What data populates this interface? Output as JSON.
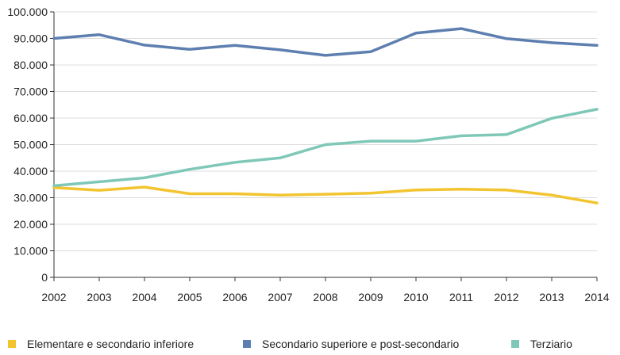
{
  "chart_data": {
    "type": "line",
    "title": "",
    "xlabel": "",
    "ylabel": "",
    "x": [
      "2002",
      "2003",
      "2004",
      "2005",
      "2006",
      "2007",
      "2008",
      "2009",
      "2010",
      "2011",
      "2012",
      "2013",
      "2014"
    ],
    "ylim": [
      0,
      100000
    ],
    "yticks": [
      0,
      10000,
      20000,
      30000,
      40000,
      50000,
      60000,
      70000,
      80000,
      90000,
      100000
    ],
    "ytick_labels": [
      "0",
      "10.000",
      "20.000",
      "30.000",
      "40.000",
      "50.000",
      "60.000",
      "70.000",
      "80.000",
      "90.000",
      "100.000"
    ],
    "grid": "horizontal",
    "legend_position": "bottom",
    "series": [
      {
        "name": "Elementare e secondario inferiore",
        "color": "#f2c530",
        "values": [
          33800,
          32800,
          34000,
          31500,
          31500,
          31000,
          31300,
          31700,
          32900,
          33200,
          32900,
          31000,
          28000
        ]
      },
      {
        "name": "Secondario superiore e post-secondario",
        "color": "#5d7fb0",
        "values": [
          90000,
          91400,
          87500,
          85900,
          87400,
          85700,
          83600,
          85000,
          92000,
          93700,
          89900,
          88400,
          87400
        ]
      },
      {
        "name": "Terziario",
        "color": "#7fc8b8",
        "values": [
          34500,
          36000,
          37500,
          40700,
          43300,
          45000,
          50000,
          51300,
          51300,
          53300,
          53800,
          59900,
          63300
        ]
      }
    ]
  }
}
